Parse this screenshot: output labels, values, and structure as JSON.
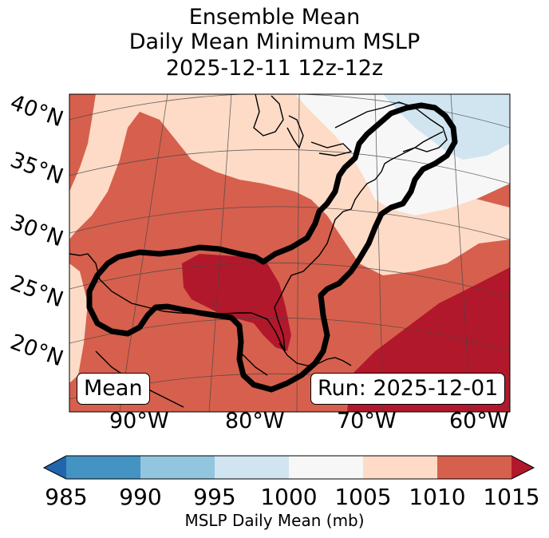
{
  "title": {
    "line1": "Ensemble Mean",
    "line2": "Daily Mean Minimum MSLP",
    "line3": "2025-12-11 12z-12z"
  },
  "map": {
    "latitude_labels": [
      "40°N",
      "35°N",
      "30°N",
      "25°N",
      "20°N"
    ],
    "longitude_labels": [
      "90°W",
      "80°W",
      "70°W",
      "60°W"
    ],
    "mean_badge": "Mean",
    "run_badge": "Run: 2025-12-01"
  },
  "colorbar": {
    "ticks": [
      "985",
      "990",
      "995",
      "1000",
      "1005",
      "1010",
      "1015"
    ],
    "label": "MSLP Daily Mean (mb)",
    "colors": [
      "#2166ac",
      "#4393c3",
      "#92c5de",
      "#d1e5f0",
      "#f7f7f7",
      "#fddbc7",
      "#d6604d",
      "#b2182b"
    ]
  }
}
